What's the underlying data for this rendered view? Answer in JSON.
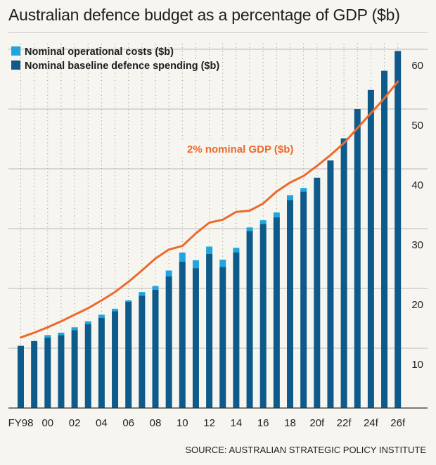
{
  "header": {
    "title": "Australian defence budget as a percentage of GDP ($b)",
    "source": "SOURCE: AUSTRALIAN STRATEGIC POLICY INSTITUTE"
  },
  "colors": {
    "baseline": "#0e5a8a",
    "operational": "#1fa6de",
    "gdp_line": "#ec6a2c",
    "background": "#f6f5f0"
  },
  "chart_data": {
    "type": "bar",
    "title": "Australian defence budget as a percentage of GDP ($b)",
    "categories": [
      "FY98",
      "99",
      "00",
      "01",
      "02",
      "03",
      "04",
      "05",
      "06",
      "07",
      "08",
      "09",
      "10",
      "11",
      "12",
      "13",
      "14",
      "15",
      "16",
      "17",
      "18",
      "19",
      "20f",
      "21f",
      "22f",
      "23f",
      "24f",
      "25f",
      "26f"
    ],
    "tick_labels": [
      "FY98",
      "00",
      "02",
      "04",
      "06",
      "08",
      "10",
      "12",
      "14",
      "16",
      "18",
      "20f",
      "22f",
      "24f",
      "26f"
    ],
    "series": [
      {
        "name": "Nominal baseline defence spending ($b)",
        "kind": "bar-stack-base",
        "values": [
          10.4,
          11.2,
          11.8,
          12.2,
          13.0,
          14.0,
          15.1,
          16.2,
          17.8,
          18.8,
          19.8,
          22.0,
          24.5,
          23.4,
          25.8,
          23.6,
          26.0,
          29.6,
          30.8,
          31.9,
          34.8,
          36.2,
          38.5,
          41.4,
          45.1,
          50.0,
          53.2,
          56.4,
          59.7
        ]
      },
      {
        "name": "Nominal operational costs ($b)",
        "kind": "bar-stack-top",
        "values": [
          0,
          0,
          0.4,
          0.4,
          0.5,
          0.5,
          0.5,
          0.4,
          0.2,
          0.6,
          0.6,
          1.0,
          1.5,
          1.3,
          1.2,
          1.2,
          0.8,
          0.6,
          0.6,
          0.8,
          0.8,
          0.6,
          0,
          0,
          0,
          0,
          0,
          0,
          0
        ]
      },
      {
        "name": "2% nominal GDP ($b)",
        "kind": "line",
        "values": [
          11.8,
          12.6,
          13.5,
          14.5,
          15.6,
          16.7,
          18.0,
          19.4,
          21.1,
          23.0,
          25.0,
          26.5,
          27.1,
          29.2,
          31.0,
          31.5,
          32.8,
          33.0,
          34.2,
          36.2,
          37.7,
          38.8,
          40.5,
          42.3,
          44.3,
          46.8,
          49.3,
          51.8,
          54.6
        ]
      }
    ],
    "legend": [
      "Nominal operational costs ($b)",
      "Nominal baseline defence spending ($b)"
    ],
    "annotation": "2% nominal GDP ($b)",
    "y_ticks": [
      10,
      20,
      30,
      40,
      50,
      60
    ],
    "ylim": [
      0,
      62
    ],
    "y_axis_side": "right",
    "grid": "horizontal solid, vertical dotted",
    "legend_position": "top-left"
  }
}
